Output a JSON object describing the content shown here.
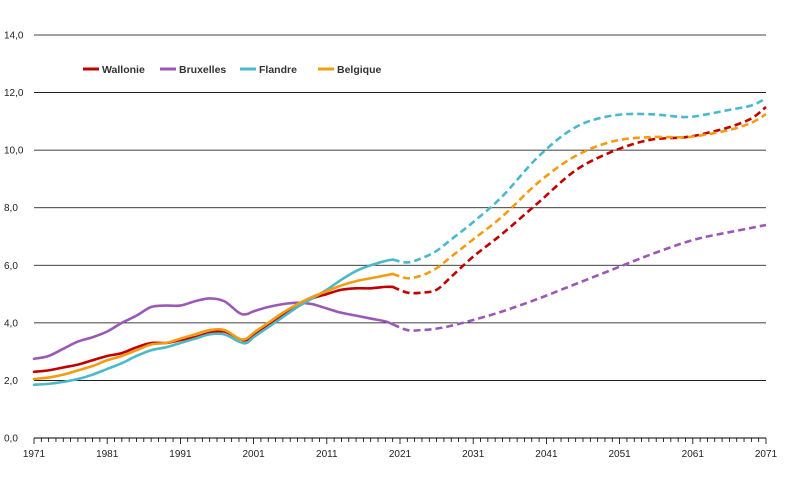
{
  "chart_data": {
    "type": "line",
    "title": "",
    "xlabel": "",
    "ylabel": "",
    "ylim": [
      0,
      14
    ],
    "xlim": [
      1971,
      2071
    ],
    "yticks": [
      "0,0",
      "2,0",
      "4,0",
      "6,0",
      "8,0",
      "10,0",
      "12,0",
      "14,0"
    ],
    "ytick_values": [
      0,
      2,
      4,
      6,
      8,
      10,
      12,
      14
    ],
    "xticks": [
      "1971",
      "1981",
      "1991",
      "2001",
      "2011",
      "2021",
      "2031",
      "2041",
      "2051",
      "2061",
      "2071"
    ],
    "xtick_values": [
      1971,
      1981,
      1991,
      2001,
      2011,
      2021,
      2031,
      2041,
      2051,
      2061,
      2071
    ],
    "grid": "horizontal",
    "legend_position": "top-left",
    "observed_until": 2020,
    "series": [
      {
        "name": "Wallonie",
        "color": "#c00000",
        "x": [
          1971,
          1973,
          1975,
          1977,
          1979,
          1981,
          1983,
          1985,
          1987,
          1989,
          1991,
          1993,
          1995,
          1997,
          1999,
          2000,
          2001,
          2003,
          2005,
          2007,
          2009,
          2011,
          2013,
          2015,
          2017,
          2019,
          2020,
          2022,
          2024,
          2026,
          2028,
          2031,
          2035,
          2040,
          2045,
          2050,
          2055,
          2060,
          2063,
          2066,
          2069,
          2071
        ],
        "y": [
          2.3,
          2.35,
          2.45,
          2.55,
          2.7,
          2.85,
          2.95,
          3.15,
          3.3,
          3.3,
          3.4,
          3.5,
          3.65,
          3.7,
          3.45,
          3.4,
          3.6,
          3.9,
          4.25,
          4.6,
          4.85,
          5.0,
          5.15,
          5.2,
          5.2,
          5.25,
          5.25,
          5.05,
          5.05,
          5.15,
          5.6,
          6.3,
          7.1,
          8.2,
          9.3,
          9.95,
          10.35,
          10.45,
          10.6,
          10.8,
          11.1,
          11.5
        ]
      },
      {
        "name": "Bruxelles",
        "color": "#9b59b6",
        "x": [
          1971,
          1973,
          1975,
          1977,
          1979,
          1981,
          1983,
          1985,
          1987,
          1989,
          1991,
          1993,
          1995,
          1997,
          1999,
          2000,
          2001,
          2003,
          2005,
          2007,
          2009,
          2011,
          2013,
          2015,
          2017,
          2019,
          2020,
          2022,
          2024,
          2026,
          2028,
          2031,
          2035,
          2040,
          2045,
          2050,
          2055,
          2060,
          2063,
          2066,
          2069,
          2071
        ],
        "y": [
          2.75,
          2.85,
          3.1,
          3.35,
          3.5,
          3.7,
          4.0,
          4.25,
          4.55,
          4.6,
          4.6,
          4.75,
          4.85,
          4.75,
          4.35,
          4.3,
          4.4,
          4.55,
          4.65,
          4.7,
          4.65,
          4.5,
          4.35,
          4.25,
          4.15,
          4.05,
          3.95,
          3.75,
          3.75,
          3.8,
          3.9,
          4.1,
          4.4,
          4.85,
          5.35,
          5.85,
          6.35,
          6.8,
          7.0,
          7.15,
          7.3,
          7.4
        ]
      },
      {
        "name": "Flandre",
        "color": "#4bb9c9",
        "x": [
          1971,
          1973,
          1975,
          1977,
          1979,
          1981,
          1983,
          1985,
          1987,
          1989,
          1991,
          1993,
          1995,
          1997,
          1999,
          2000,
          2001,
          2003,
          2005,
          2007,
          2009,
          2011,
          2013,
          2015,
          2017,
          2019,
          2020,
          2022,
          2024,
          2026,
          2028,
          2031,
          2035,
          2040,
          2045,
          2050,
          2055,
          2060,
          2063,
          2066,
          2069,
          2071
        ],
        "y": [
          1.85,
          1.88,
          1.95,
          2.05,
          2.2,
          2.4,
          2.6,
          2.85,
          3.05,
          3.15,
          3.3,
          3.45,
          3.6,
          3.6,
          3.35,
          3.3,
          3.5,
          3.85,
          4.2,
          4.55,
          4.85,
          5.15,
          5.5,
          5.8,
          6.0,
          6.15,
          6.2,
          6.1,
          6.25,
          6.5,
          6.9,
          7.5,
          8.4,
          9.8,
          10.8,
          11.2,
          11.25,
          11.15,
          11.25,
          11.4,
          11.55,
          11.8
        ]
      },
      {
        "name": "Belgique",
        "color": "#f39c12",
        "x": [
          1971,
          1973,
          1975,
          1977,
          1979,
          1981,
          1983,
          1985,
          1987,
          1989,
          1991,
          1993,
          1995,
          1997,
          1999,
          2000,
          2001,
          2003,
          2005,
          2007,
          2009,
          2011,
          2013,
          2015,
          2017,
          2019,
          2020,
          2022,
          2024,
          2026,
          2028,
          2031,
          2035,
          2040,
          2045,
          2050,
          2055,
          2060,
          2063,
          2066,
          2069,
          2071
        ],
        "y": [
          2.05,
          2.1,
          2.2,
          2.35,
          2.5,
          2.7,
          2.85,
          3.05,
          3.25,
          3.3,
          3.45,
          3.6,
          3.75,
          3.75,
          3.45,
          3.45,
          3.65,
          4.0,
          4.35,
          4.65,
          4.9,
          5.1,
          5.3,
          5.45,
          5.55,
          5.65,
          5.7,
          5.55,
          5.65,
          5.9,
          6.3,
          6.9,
          7.7,
          8.9,
          9.8,
          10.3,
          10.45,
          10.45,
          10.55,
          10.7,
          10.95,
          11.25
        ]
      }
    ]
  }
}
